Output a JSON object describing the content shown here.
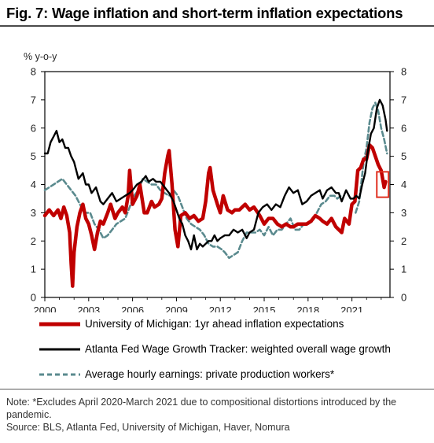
{
  "title": "Fig. 7: Wage inflation and short-term inflation expectations",
  "note": "Note: *Excludes April 2020-March 2021 due to compositional distortions introduced by the pandemic.",
  "source": "Source: BLS, Atlanta Fed, University of Michigan, Haver, Nomura",
  "colors": {
    "umich": "#c00000",
    "atlanta": "#000000",
    "ahe": "#5a8a8e",
    "highlight": "#e03020",
    "axis": "#000000"
  },
  "chart_data": {
    "type": "line",
    "ylabel": "% y-o-y",
    "xlim": [
      2000,
      2023.6
    ],
    "ylim": [
      0,
      8
    ],
    "y_ticks": [
      0,
      1,
      2,
      3,
      4,
      5,
      6,
      7,
      8
    ],
    "y2_ticks": [
      0,
      1,
      2,
      3,
      4,
      5,
      6,
      7,
      8
    ],
    "x_ticks": [
      2000,
      2003,
      2006,
      2009,
      2012,
      2015,
      2018,
      2021
    ],
    "legend_position": "bottom",
    "highlight_box": {
      "x_range": [
        2022.7,
        2023.5
      ],
      "y_range": [
        3.55,
        4.45
      ]
    },
    "series": [
      {
        "name": "University of Michigan: 1yr ahead inflation expectations",
        "style": "solid-thick",
        "points": [
          [
            2000.0,
            2.9
          ],
          [
            2000.3,
            3.1
          ],
          [
            2000.6,
            2.9
          ],
          [
            2000.9,
            3.1
          ],
          [
            2001.1,
            2.8
          ],
          [
            2001.3,
            3.2
          ],
          [
            2001.5,
            2.9
          ],
          [
            2001.7,
            2.3
          ],
          [
            2001.8,
            1.2
          ],
          [
            2001.9,
            0.4
          ],
          [
            2002.0,
            1.6
          ],
          [
            2002.2,
            2.5
          ],
          [
            2002.4,
            3.0
          ],
          [
            2002.6,
            3.3
          ],
          [
            2002.8,
            2.8
          ],
          [
            2003.0,
            2.6
          ],
          [
            2003.2,
            2.2
          ],
          [
            2003.4,
            1.7
          ],
          [
            2003.6,
            2.3
          ],
          [
            2003.8,
            2.7
          ],
          [
            2004.0,
            2.6
          ],
          [
            2004.3,
            3.0
          ],
          [
            2004.5,
            3.3
          ],
          [
            2004.8,
            2.8
          ],
          [
            2005.0,
            3.0
          ],
          [
            2005.3,
            3.2
          ],
          [
            2005.5,
            3.0
          ],
          [
            2005.7,
            3.6
          ],
          [
            2005.8,
            4.5
          ],
          [
            2006.0,
            3.3
          ],
          [
            2006.3,
            3.6
          ],
          [
            2006.5,
            4.0
          ],
          [
            2006.8,
            3.0
          ],
          [
            2007.0,
            3.0
          ],
          [
            2007.3,
            3.4
          ],
          [
            2007.5,
            3.2
          ],
          [
            2007.8,
            3.3
          ],
          [
            2008.0,
            3.5
          ],
          [
            2008.2,
            4.4
          ],
          [
            2008.4,
            5.0
          ],
          [
            2008.5,
            5.2
          ],
          [
            2008.7,
            4.0
          ],
          [
            2008.9,
            2.4
          ],
          [
            2009.1,
            1.8
          ],
          [
            2009.3,
            2.9
          ],
          [
            2009.6,
            3.0
          ],
          [
            2009.9,
            2.8
          ],
          [
            2010.2,
            2.9
          ],
          [
            2010.5,
            2.7
          ],
          [
            2010.8,
            2.8
          ],
          [
            2011.0,
            3.4
          ],
          [
            2011.2,
            4.4
          ],
          [
            2011.3,
            4.6
          ],
          [
            2011.5,
            3.8
          ],
          [
            2011.8,
            3.3
          ],
          [
            2012.0,
            3.0
          ],
          [
            2012.2,
            3.6
          ],
          [
            2012.5,
            3.1
          ],
          [
            2012.8,
            3.0
          ],
          [
            2013.0,
            3.1
          ],
          [
            2013.3,
            3.1
          ],
          [
            2013.7,
            3.3
          ],
          [
            2014.0,
            3.1
          ],
          [
            2014.3,
            3.2
          ],
          [
            2014.7,
            2.9
          ],
          [
            2015.0,
            2.6
          ],
          [
            2015.3,
            2.8
          ],
          [
            2015.6,
            2.8
          ],
          [
            2015.9,
            2.6
          ],
          [
            2016.2,
            2.5
          ],
          [
            2016.5,
            2.6
          ],
          [
            2016.8,
            2.5
          ],
          [
            2017.0,
            2.5
          ],
          [
            2017.3,
            2.6
          ],
          [
            2017.6,
            2.6
          ],
          [
            2017.9,
            2.6
          ],
          [
            2018.2,
            2.7
          ],
          [
            2018.5,
            2.9
          ],
          [
            2018.8,
            2.8
          ],
          [
            2019.0,
            2.7
          ],
          [
            2019.3,
            2.6
          ],
          [
            2019.6,
            2.8
          ],
          [
            2019.9,
            2.5
          ],
          [
            2020.1,
            2.4
          ],
          [
            2020.3,
            2.3
          ],
          [
            2020.5,
            2.8
          ],
          [
            2020.8,
            2.6
          ],
          [
            2021.0,
            3.3
          ],
          [
            2021.2,
            3.4
          ],
          [
            2021.4,
            4.5
          ],
          [
            2021.6,
            4.6
          ],
          [
            2021.8,
            4.9
          ],
          [
            2022.0,
            4.9
          ],
          [
            2022.2,
            5.4
          ],
          [
            2022.4,
            5.3
          ],
          [
            2022.6,
            5.0
          ],
          [
            2022.8,
            4.7
          ],
          [
            2023.0,
            4.5
          ],
          [
            2023.2,
            3.9
          ],
          [
            2023.3,
            4.1
          ]
        ]
      },
      {
        "name": "Atlanta Fed Wage Growth Tracker: weighted overall wage growth",
        "style": "solid",
        "points": [
          [
            2000.0,
            5.1
          ],
          [
            2000.2,
            5.1
          ],
          [
            2000.4,
            5.5
          ],
          [
            2000.6,
            5.7
          ],
          [
            2000.8,
            5.9
          ],
          [
            2001.0,
            5.5
          ],
          [
            2001.2,
            5.6
          ],
          [
            2001.4,
            5.3
          ],
          [
            2001.6,
            5.3
          ],
          [
            2001.8,
            5.0
          ],
          [
            2002.0,
            4.8
          ],
          [
            2002.3,
            4.2
          ],
          [
            2002.6,
            4.4
          ],
          [
            2002.8,
            4.0
          ],
          [
            2003.0,
            4.0
          ],
          [
            2003.2,
            3.7
          ],
          [
            2003.5,
            3.9
          ],
          [
            2003.8,
            3.4
          ],
          [
            2004.0,
            3.3
          ],
          [
            2004.3,
            3.5
          ],
          [
            2004.6,
            3.7
          ],
          [
            2004.9,
            3.4
          ],
          [
            2005.2,
            3.5
          ],
          [
            2005.5,
            3.6
          ],
          [
            2005.8,
            3.7
          ],
          [
            2006.0,
            3.8
          ],
          [
            2006.3,
            4.0
          ],
          [
            2006.6,
            4.1
          ],
          [
            2006.9,
            4.3
          ],
          [
            2007.1,
            4.1
          ],
          [
            2007.4,
            4.2
          ],
          [
            2007.6,
            4.1
          ],
          [
            2007.9,
            4.1
          ],
          [
            2008.2,
            3.9
          ],
          [
            2008.5,
            3.7
          ],
          [
            2008.8,
            3.4
          ],
          [
            2009.0,
            3.1
          ],
          [
            2009.2,
            2.8
          ],
          [
            2009.4,
            2.6
          ],
          [
            2009.6,
            2.2
          ],
          [
            2009.8,
            2.0
          ],
          [
            2010.0,
            1.7
          ],
          [
            2010.2,
            2.2
          ],
          [
            2010.4,
            1.7
          ],
          [
            2010.6,
            1.9
          ],
          [
            2010.8,
            1.8
          ],
          [
            2011.0,
            1.9
          ],
          [
            2011.2,
            2.0
          ],
          [
            2011.4,
            2.0
          ],
          [
            2011.6,
            2.2
          ],
          [
            2011.8,
            2.0
          ],
          [
            2012.0,
            2.1
          ],
          [
            2012.3,
            2.2
          ],
          [
            2012.6,
            2.2
          ],
          [
            2012.9,
            2.4
          ],
          [
            2013.2,
            2.3
          ],
          [
            2013.5,
            2.4
          ],
          [
            2013.8,
            2.1
          ],
          [
            2014.0,
            2.3
          ],
          [
            2014.3,
            2.4
          ],
          [
            2014.6,
            3.0
          ],
          [
            2014.9,
            3.2
          ],
          [
            2015.2,
            3.3
          ],
          [
            2015.5,
            3.1
          ],
          [
            2015.8,
            3.3
          ],
          [
            2016.1,
            3.2
          ],
          [
            2016.4,
            3.6
          ],
          [
            2016.7,
            3.9
          ],
          [
            2017.0,
            3.7
          ],
          [
            2017.3,
            3.8
          ],
          [
            2017.6,
            3.3
          ],
          [
            2017.9,
            3.4
          ],
          [
            2018.2,
            3.6
          ],
          [
            2018.5,
            3.7
          ],
          [
            2018.8,
            3.8
          ],
          [
            2019.0,
            3.5
          ],
          [
            2019.3,
            3.8
          ],
          [
            2019.6,
            3.9
          ],
          [
            2019.9,
            3.7
          ],
          [
            2020.1,
            3.7
          ],
          [
            2020.3,
            3.4
          ],
          [
            2020.6,
            3.8
          ],
          [
            2020.9,
            3.5
          ],
          [
            2021.1,
            3.5
          ],
          [
            2021.3,
            3.6
          ],
          [
            2021.5,
            3.5
          ],
          [
            2021.7,
            4.0
          ],
          [
            2021.9,
            4.4
          ],
          [
            2022.1,
            5.2
          ],
          [
            2022.3,
            5.8
          ],
          [
            2022.5,
            6.0
          ],
          [
            2022.7,
            6.7
          ],
          [
            2022.9,
            7.0
          ],
          [
            2023.1,
            6.8
          ],
          [
            2023.3,
            6.3
          ],
          [
            2023.4,
            5.9
          ]
        ]
      },
      {
        "name": "Average hourly earnings: private production workers*",
        "style": "dashed",
        "points": [
          [
            2000.0,
            3.8
          ],
          [
            2000.3,
            3.9
          ],
          [
            2000.6,
            4.0
          ],
          [
            2000.9,
            4.1
          ],
          [
            2001.2,
            4.2
          ],
          [
            2001.5,
            4.0
          ],
          [
            2001.8,
            3.8
          ],
          [
            2002.1,
            3.6
          ],
          [
            2002.5,
            3.2
          ],
          [
            2002.8,
            3.0
          ],
          [
            2003.1,
            3.0
          ],
          [
            2003.4,
            2.6
          ],
          [
            2003.7,
            2.4
          ],
          [
            2004.0,
            2.1
          ],
          [
            2004.3,
            2.2
          ],
          [
            2004.6,
            2.4
          ],
          [
            2004.9,
            2.6
          ],
          [
            2005.2,
            2.7
          ],
          [
            2005.5,
            2.8
          ],
          [
            2005.8,
            3.2
          ],
          [
            2006.1,
            3.6
          ],
          [
            2006.4,
            3.8
          ],
          [
            2006.7,
            4.2
          ],
          [
            2007.0,
            4.1
          ],
          [
            2007.3,
            4.0
          ],
          [
            2007.6,
            4.0
          ],
          [
            2007.9,
            3.8
          ],
          [
            2008.2,
            3.7
          ],
          [
            2008.5,
            3.6
          ],
          [
            2008.8,
            3.8
          ],
          [
            2009.1,
            3.6
          ],
          [
            2009.4,
            3.2
          ],
          [
            2009.7,
            2.8
          ],
          [
            2010.0,
            2.6
          ],
          [
            2010.3,
            2.5
          ],
          [
            2010.6,
            2.4
          ],
          [
            2010.9,
            2.2
          ],
          [
            2011.2,
            1.9
          ],
          [
            2011.5,
            1.8
          ],
          [
            2011.8,
            1.8
          ],
          [
            2012.1,
            1.7
          ],
          [
            2012.3,
            1.6
          ],
          [
            2012.6,
            1.4
          ],
          [
            2012.9,
            1.5
          ],
          [
            2013.2,
            1.6
          ],
          [
            2013.5,
            2.0
          ],
          [
            2013.8,
            2.3
          ],
          [
            2014.1,
            2.3
          ],
          [
            2014.4,
            2.3
          ],
          [
            2014.7,
            2.4
          ],
          [
            2015.0,
            2.2
          ],
          [
            2015.3,
            2.5
          ],
          [
            2015.6,
            2.2
          ],
          [
            2015.9,
            2.4
          ],
          [
            2016.2,
            2.4
          ],
          [
            2016.5,
            2.6
          ],
          [
            2016.8,
            2.8
          ],
          [
            2017.1,
            2.4
          ],
          [
            2017.4,
            2.4
          ],
          [
            2017.7,
            2.6
          ],
          [
            2018.0,
            2.6
          ],
          [
            2018.3,
            2.7
          ],
          [
            2018.6,
            3.0
          ],
          [
            2018.9,
            3.3
          ],
          [
            2019.2,
            3.4
          ],
          [
            2019.5,
            3.6
          ],
          [
            2019.8,
            3.6
          ],
          [
            2020.0,
            3.5
          ],
          [
            2020.25,
            3.6
          ],
          [
            null,
            null
          ],
          [
            2021.25,
            3.0
          ],
          [
            2021.5,
            3.4
          ],
          [
            2021.8,
            4.8
          ],
          [
            2022.0,
            5.3
          ],
          [
            2022.2,
            6.2
          ],
          [
            2022.4,
            6.7
          ],
          [
            2022.6,
            6.9
          ],
          [
            2022.8,
            6.6
          ],
          [
            2023.0,
            6.0
          ],
          [
            2023.2,
            5.6
          ],
          [
            2023.4,
            5.1
          ]
        ]
      }
    ]
  }
}
